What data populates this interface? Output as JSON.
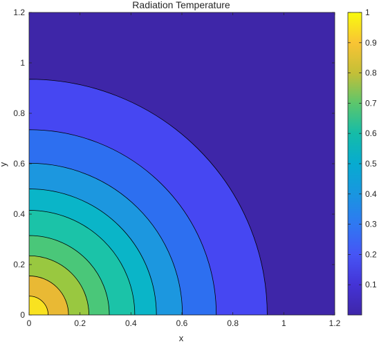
{
  "chart_data": {
    "type": "contour",
    "title": "Radiation Temperature",
    "xlabel": "x",
    "ylabel": "y",
    "xlim": [
      0,
      1.2
    ],
    "ylim": [
      0,
      1.2
    ],
    "xticks": [
      "0",
      "0.2",
      "0.4",
      "0.6",
      "0.8",
      "1",
      "1.2"
    ],
    "yticks": [
      "0",
      "0.2",
      "0.4",
      "0.6",
      "0.8",
      "1",
      "1.2"
    ],
    "contour_levels": [
      0.1,
      0.2,
      0.3,
      0.4,
      0.5,
      0.6,
      0.7,
      0.8,
      0.9
    ],
    "contour_radii": [
      0.935,
      0.735,
      0.602,
      0.5,
      0.415,
      0.315,
      0.235,
      0.155,
      0.075
    ],
    "contour_shape": "circular arcs centered at origin",
    "colorbar": {
      "range": [
        0,
        1
      ],
      "ticks": [
        "0.1",
        "0.2",
        "0.3",
        "0.4",
        "0.5",
        "0.6",
        "0.7",
        "0.8",
        "0.9",
        "1"
      ]
    },
    "band_colors": [
      "#3e26a8",
      "#4647f2",
      "#2d6ff0",
      "#1c97df",
      "#0ab5c8",
      "#1bc3a8",
      "#4ac779",
      "#99c840",
      "#e9b934",
      "#f9e220"
    ],
    "grid": false
  }
}
